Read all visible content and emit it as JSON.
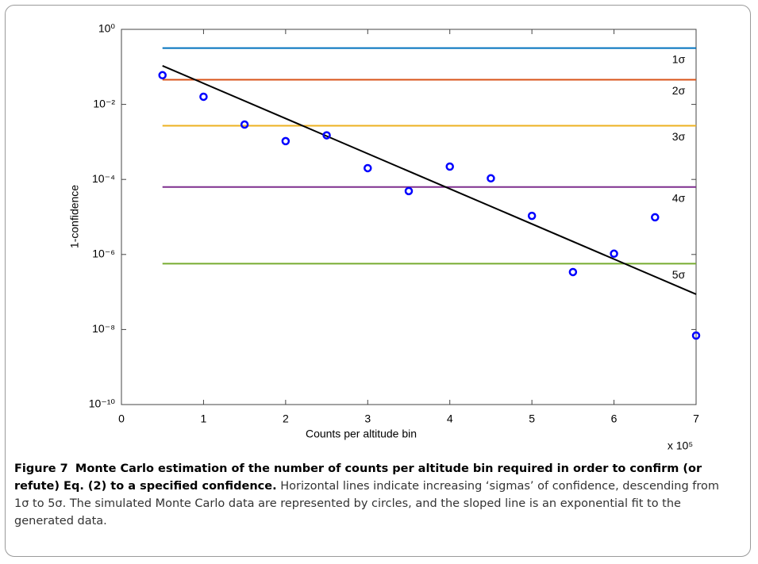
{
  "chart_data": {
    "type": "line",
    "y_label": "1-confidence",
    "x_label": "Counts per altitude bin",
    "x_multiplier": "x 10⁵",
    "xlim": [
      0,
      7
    ],
    "xticks": [
      0,
      1,
      2,
      3,
      4,
      5,
      6,
      7
    ],
    "ylim": [
      1e-10,
      1
    ],
    "log_y": true,
    "yticks": [
      {
        "value": 1e-10,
        "label": "10⁻¹⁰"
      },
      {
        "value": 1e-08,
        "label": "10⁻⁸"
      },
      {
        "value": 1e-06,
        "label": "10⁻⁶"
      },
      {
        "value": 0.0001,
        "label": "10⁻⁴"
      },
      {
        "value": 0.01,
        "label": "10⁻²"
      },
      {
        "value": 1,
        "label": "10⁰"
      }
    ],
    "series": [
      {
        "name": "1σ",
        "color": "#0072bd",
        "style": "line",
        "x": [
          0.5,
          7
        ],
        "values": [
          0.317,
          0.317
        ]
      },
      {
        "name": "2σ",
        "color": "#d95319",
        "style": "line",
        "x": [
          0.5,
          7
        ],
        "values": [
          0.0455,
          0.0455
        ]
      },
      {
        "name": "3σ",
        "color": "#edb120",
        "style": "line",
        "x": [
          0.5,
          7
        ],
        "values": [
          0.0027,
          0.0027
        ]
      },
      {
        "name": "4σ",
        "color": "#7e2f8e",
        "style": "line",
        "x": [
          0.5,
          7
        ],
        "values": [
          6.3e-05,
          6.3e-05
        ]
      },
      {
        "name": "5σ",
        "color": "#77ac30",
        "style": "line",
        "x": [
          0.5,
          7
        ],
        "values": [
          5.7e-07,
          5.7e-07
        ]
      },
      {
        "color": "#000000",
        "style": "line",
        "x": [
          0.5,
          7
        ],
        "values": [
          0.107,
          8.7e-08
        ]
      },
      {
        "color": "#0000ff",
        "style": "markers",
        "x": [
          0.5,
          1,
          1.5,
          2,
          2.5,
          3,
          3.5,
          4,
          4.5,
          5,
          5.5,
          6,
          6.5,
          7
        ],
        "values": [
          0.06,
          0.016,
          0.0029,
          0.00105,
          0.0015,
          0.0002,
          4.9e-05,
          0.00022,
          0.000107,
          1.07e-05,
          3.4e-07,
          1.05e-06,
          9.8e-06,
          6.9e-09
        ]
      }
    ]
  },
  "caption": {
    "label": "Figure 7",
    "heading": "Monte Carlo estimation of the number of counts per altitude bin required in order to confirm (or refute) Eq. (2) to a specified confidence.",
    "text": "Horizontal lines indicate increasing ‘sigmas’ of confidence, descending from 1σ to 5σ. The simulated Monte Carlo data are represented by circles, and the sloped line is an exponential fit to the generated data."
  }
}
